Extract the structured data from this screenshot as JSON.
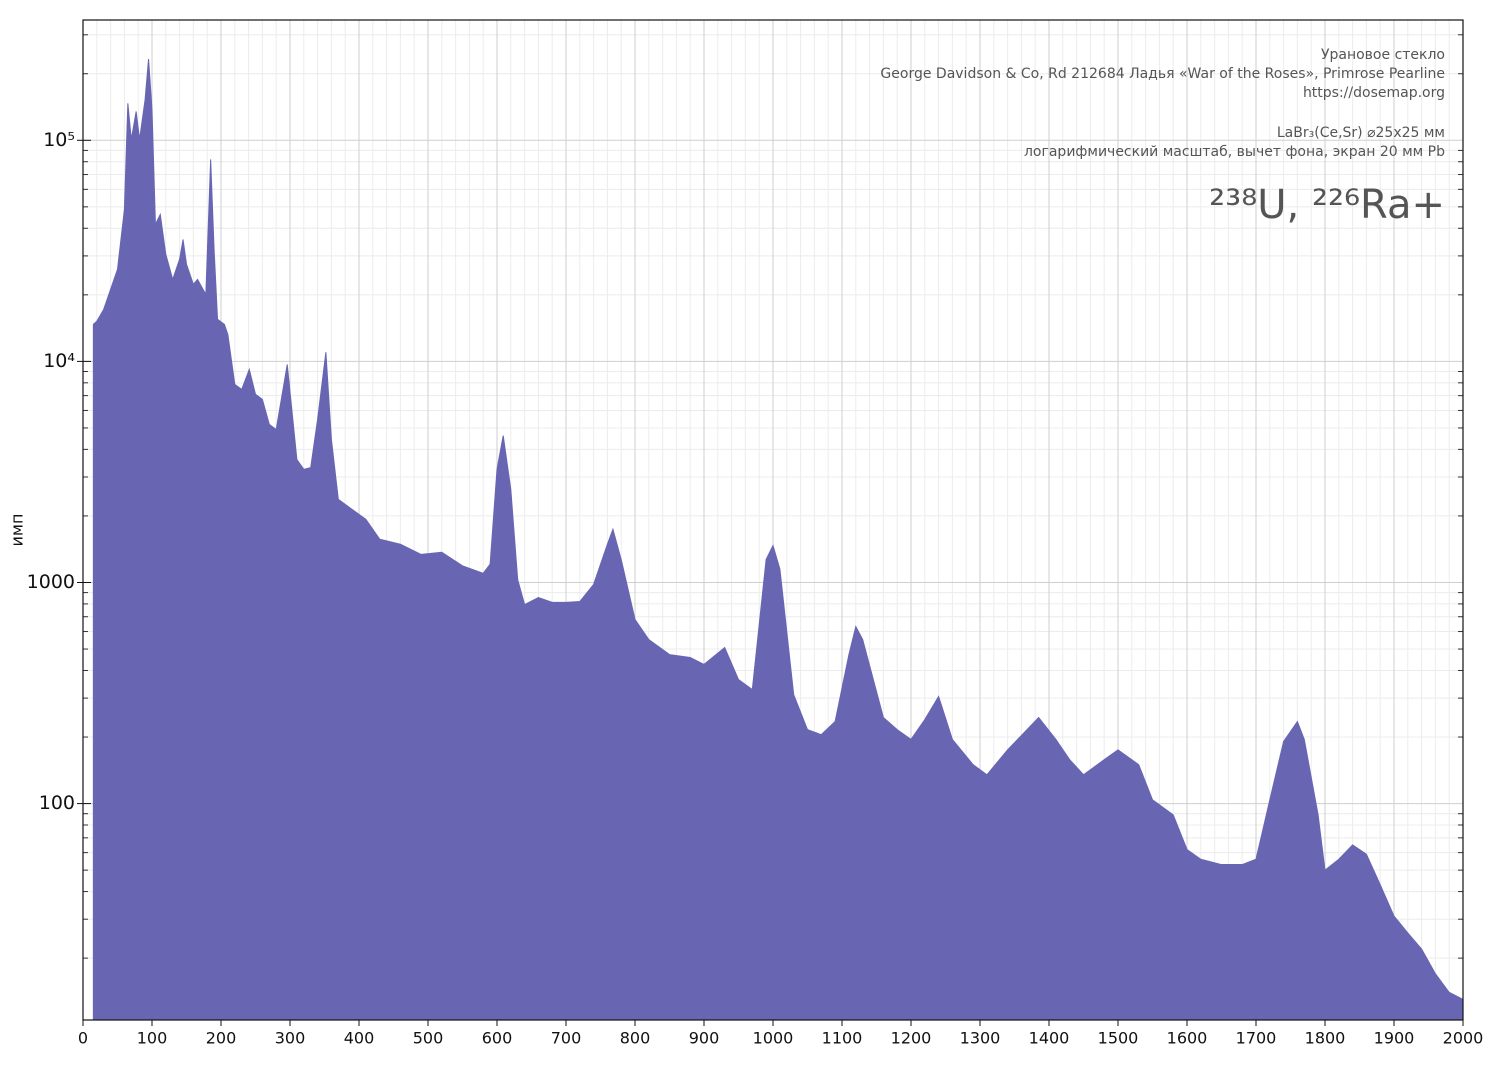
{
  "chart_data": {
    "type": "area",
    "ylabel": "имп",
    "annotations": [
      "Урановое стекло",
      "George Davidson & Co, Rd 212684 Ладья «War of the Roses», Primrose Pearline",
      "https://dosemap.org",
      "LaBr₃(Ce,Sr) ⌀25x25 мм",
      "логарифмический масштаб, вычет фона, экран 20 мм Pb"
    ],
    "headline": "²³⁸U, ²²⁶Ra+",
    "color": "#6866b2",
    "log_y": true,
    "grid": true,
    "xlim": [
      0,
      2000
    ],
    "xticks": [
      0,
      100,
      200,
      300,
      400,
      500,
      600,
      700,
      800,
      900,
      1000,
      1100,
      1200,
      1300,
      1400,
      1500,
      1600,
      1700,
      1800,
      1900,
      2000
    ],
    "ylim": [
      10.5,
      350000
    ],
    "yticks": [
      100,
      1000,
      {
        "value": 10000,
        "label": "10⁴"
      },
      {
        "value": 100000,
        "label": "10⁵"
      }
    ],
    "x": [
      15,
      20,
      30,
      40,
      50,
      60,
      65,
      70,
      77,
      82,
      90,
      95,
      100,
      105,
      112,
      120,
      130,
      140,
      145,
      150,
      160,
      166,
      178,
      185,
      190,
      195,
      205,
      210,
      220,
      230,
      241,
      250,
      260,
      270,
      280,
      296,
      310,
      320,
      330,
      340,
      352,
      360,
      370,
      390,
      410,
      430,
      460,
      490,
      520,
      550,
      580,
      590,
      600,
      609,
      620,
      630,
      640,
      660,
      680,
      700,
      720,
      740,
      760,
      768,
      780,
      800,
      820,
      850,
      880,
      900,
      930,
      950,
      970,
      990,
      1000,
      1010,
      1030,
      1050,
      1070,
      1090,
      1110,
      1120,
      1130,
      1160,
      1180,
      1200,
      1220,
      1240,
      1260,
      1290,
      1310,
      1340,
      1385,
      1410,
      1430,
      1450,
      1480,
      1500,
      1530,
      1550,
      1580,
      1600,
      1620,
      1650,
      1680,
      1700,
      1720,
      1740,
      1760,
      1770,
      1790,
      1800,
      1820,
      1840,
      1860,
      1880,
      1900,
      1920,
      1940,
      1960,
      1980,
      2000
    ],
    "values": [
      14700,
      15200,
      17200,
      21200,
      26100,
      48700,
      147000,
      101000,
      135000,
      101000,
      153000,
      233000,
      138000,
      41700,
      46200,
      30500,
      23500,
      29000,
      35600,
      27500,
      22300,
      23500,
      20100,
      82000,
      32100,
      15500,
      14700,
      13200,
      7870,
      7470,
      9200,
      7100,
      6730,
      5190,
      4920,
      9690,
      3600,
      3250,
      3310,
      5470,
      11000,
      4440,
      2380,
      2140,
      1930,
      1570,
      1490,
      1340,
      1370,
      1190,
      1100,
      1210,
      3250,
      4620,
      2640,
      1030,
      795,
      855,
      813,
      813,
      820,
      980,
      1490,
      1740,
      1270,
      681,
      552,
      472,
      458,
      426,
      508,
      364,
      328,
      1270,
      1470,
      1150,
      311,
      216,
      205,
      235,
      472,
      632,
      552,
      245,
      216,
      195,
      240,
      305,
      195,
      150,
      135,
      175,
      245,
      195,
      158,
      135,
      158,
      175,
      150,
      104,
      89,
      62,
      56,
      53,
      53,
      56,
      104,
      191,
      235,
      195,
      89,
      50,
      56,
      65,
      59,
      43,
      31,
      26,
      22,
      17,
      14,
      13
    ]
  }
}
